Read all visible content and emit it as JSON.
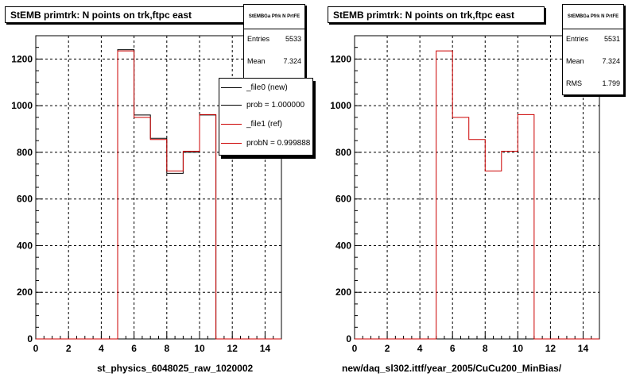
{
  "footer_text": "",
  "chart_data": [
    {
      "type": "histogram",
      "title": "StEMB primtrk: N points on trk,ftpc east",
      "xlabel": "st_physics_6048025_raw_1020002",
      "xlim": [
        0,
        15
      ],
      "ylim": [
        0,
        1300
      ],
      "x_ticks": [
        0,
        2,
        4,
        6,
        8,
        10,
        12,
        14
      ],
      "y_ticks": [
        0,
        200,
        400,
        600,
        800,
        1000,
        1200
      ],
      "grid": true,
      "bin_edges": [
        0,
        1,
        2,
        3,
        4,
        5,
        6,
        7,
        8,
        9,
        10,
        11,
        12,
        13,
        14,
        15
      ],
      "series": [
        {
          "name": "_file0 (new)",
          "color": "#000000",
          "values": [
            0,
            0,
            0,
            0,
            0,
            1240,
            960,
            860,
            710,
            800,
            960,
            0,
            0,
            0,
            0
          ]
        },
        {
          "name": "_file1 (ref)",
          "color": "#cc0000",
          "values": [
            0,
            0,
            0,
            0,
            0,
            1235,
            950,
            855,
            720,
            805,
            962,
            0,
            0,
            0,
            0
          ]
        }
      ],
      "stats": {
        "name": "StEMBGa Pfrk N PrtFE",
        "entries_label": "Entries",
        "entries": "5533",
        "mean_label": "Mean",
        "mean": "7.324"
      },
      "legend": {
        "items": [
          {
            "label": "_file0 (new)",
            "color": "#000000"
          },
          {
            "label": "prob = 1.000000",
            "color": "#000000"
          },
          {
            "label": "_file1 (ref)",
            "color": "#cc0000"
          },
          {
            "label": "probN = 0.999888",
            "color": "#cc0000"
          }
        ]
      }
    },
    {
      "type": "histogram",
      "title": "StEMB primtrk: N points on trk,ftpc east",
      "xlabel": "new/daq_sl302.ittf/year_2005/CuCu200_MinBias/",
      "xlim": [
        0,
        15
      ],
      "ylim": [
        0,
        1300
      ],
      "x_ticks": [
        0,
        2,
        4,
        6,
        8,
        10,
        12,
        14
      ],
      "y_ticks": [
        0,
        200,
        400,
        600,
        800,
        1000,
        1200
      ],
      "grid": true,
      "bin_edges": [
        0,
        1,
        2,
        3,
        4,
        5,
        6,
        7,
        8,
        9,
        10,
        11,
        12,
        13,
        14,
        15
      ],
      "series": [
        {
          "color": "#cc0000",
          "values": [
            0,
            0,
            0,
            0,
            0,
            1235,
            950,
            855,
            720,
            805,
            962,
            0,
            0,
            0,
            0
          ]
        }
      ],
      "stats": {
        "name": "StEMBGa Pfrk N PrtFE",
        "entries_label": "Entries",
        "entries": "5531",
        "mean_label": "Mean",
        "mean": "7.324",
        "rms_label": "RMS",
        "rms": "1.799"
      }
    }
  ]
}
